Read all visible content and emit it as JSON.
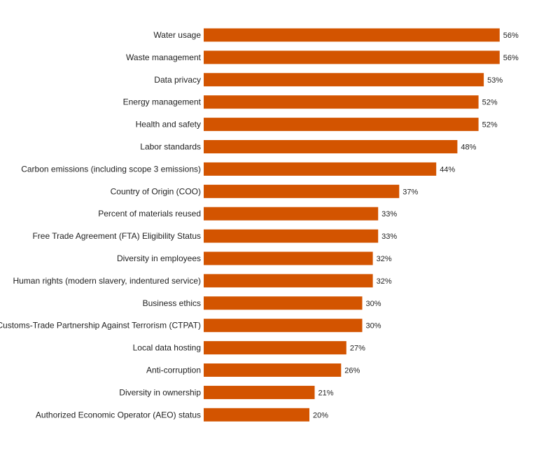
{
  "colors": {
    "bar": "#d35400",
    "text": "#222222"
  },
  "chart_data": {
    "type": "bar",
    "orientation": "horizontal",
    "title": "",
    "xlabel": "",
    "ylabel": "",
    "xlim": [
      0,
      60
    ],
    "grid": false,
    "value_format": "percent",
    "categories": [
      "Water usage",
      "Waste management",
      "Data privacy",
      "Energy management",
      "Health and safety",
      "Labor standards",
      "Carbon emissions (including scope 3 emissions)",
      "Country of Origin (COO)",
      "Percent of materials reused",
      "Free Trade Agreement (FTA) Eligibility Status",
      "Diversity in employees",
      "Human rights (modern slavery, indentured service)",
      "Business ethics",
      "Customs-Trade Partnership Against Terrorism (CTPAT)",
      "Local data hosting",
      "Anti-corruption",
      "Diversity in ownership",
      "Authorized Economic Operator (AEO) status"
    ],
    "values": [
      56,
      56,
      53,
      52,
      52,
      48,
      44,
      37,
      33,
      33,
      32,
      32,
      30,
      30,
      27,
      26,
      21,
      20
    ],
    "value_labels": [
      "56%",
      "56%",
      "53%",
      "52%",
      "52%",
      "48%",
      "44%",
      "37%",
      "33%",
      "33%",
      "32%",
      "32%",
      "30%",
      "30%",
      "27%",
      "26%",
      "21%",
      "20%"
    ]
  }
}
